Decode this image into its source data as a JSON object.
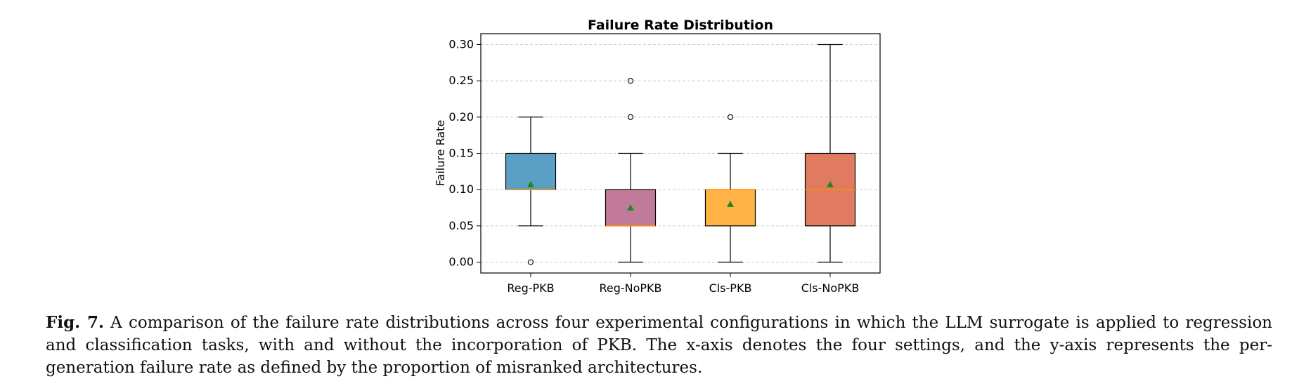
{
  "chart_data": {
    "type": "box",
    "title": "Failure Rate Distribution",
    "xlabel": "",
    "ylabel": "Failure Rate",
    "ylim": [
      -0.015,
      0.315
    ],
    "yticks": [
      "0.00",
      "0.05",
      "0.10",
      "0.15",
      "0.20",
      "0.25",
      "0.30"
    ],
    "ytick_values": [
      0.0,
      0.05,
      0.1,
      0.15,
      0.2,
      0.25,
      0.3
    ],
    "grid": "horizontal dashed",
    "categories": [
      "Reg-PKB",
      "Reg-NoPKB",
      "Cls-PKB",
      "Cls-NoPKB"
    ],
    "boxes": [
      {
        "name": "Reg-PKB",
        "whislo": 0.05,
        "q1": 0.1,
        "med": 0.1,
        "q3": 0.15,
        "whishi": 0.2,
        "mean": 0.107,
        "fliers": [
          0.0
        ],
        "color": "#5aa0c4"
      },
      {
        "name": "Reg-NoPKB",
        "whislo": 0.0,
        "q1": 0.05,
        "med": 0.05,
        "q3": 0.1,
        "whishi": 0.15,
        "mean": 0.075,
        "fliers": [
          0.2,
          0.25
        ],
        "color": "#c27a9a"
      },
      {
        "name": "Cls-PKB",
        "whislo": 0.0,
        "q1": 0.05,
        "med": 0.1,
        "q3": 0.1,
        "whishi": 0.15,
        "mean": 0.08,
        "fliers": [
          0.2
        ],
        "color": "#ffb347"
      },
      {
        "name": "Cls-NoPKB",
        "whislo": 0.0,
        "q1": 0.05,
        "med": 0.1,
        "q3": 0.15,
        "whishi": 0.3,
        "mean": 0.107,
        "fliers": [],
        "color": "#e07a60"
      }
    ],
    "median_color": "#ff8c00",
    "mean_marker_color": "#1e8a1e"
  },
  "caption": {
    "label": "Fig. 7.",
    "text": " A comparison of the failure rate distributions across four experimental configurations in which the LLM surrogate is applied to regression and classification tasks, with and without the incorporation of PKB. The x-axis denotes the four settings, and the y-axis represents the per-generation failure rate as defined by the proportion of misranked architectures."
  }
}
